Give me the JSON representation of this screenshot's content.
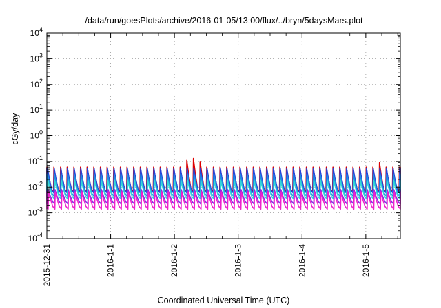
{
  "chart_data": {
    "type": "line",
    "title": "/data/run/goesPlots/archive/2016-01-05/13:00/flux/../bryn/5daysMars.plot",
    "xlabel": "Coordinated Universal Time (UTC)",
    "ylabel": "cGy/day",
    "yscale": "log",
    "ylim": [
      0.0001,
      10000
    ],
    "xlim": [
      "2015-12-31 00:00",
      "2016-01-05 13:00"
    ],
    "y_ticks": [
      {
        "base": "10",
        "exp": "-4"
      },
      {
        "base": "10",
        "exp": "-3"
      },
      {
        "base": "10",
        "exp": "-2"
      },
      {
        "base": "10",
        "exp": "-1"
      },
      {
        "base": "10",
        "exp": "0"
      },
      {
        "base": "10",
        "exp": "1"
      },
      {
        "base": "10",
        "exp": "2"
      },
      {
        "base": "10",
        "exp": "3"
      },
      {
        "base": "10",
        "exp": "4"
      }
    ],
    "x_tick_labels": [
      "2015-12-31",
      "2016-1-1",
      "2016-1-2",
      "2016-1-3",
      "2016-1-4",
      "2016-1-5"
    ],
    "grid": true,
    "cycle_hours": 2.5,
    "series": [
      {
        "color": "#dd0000",
        "peak": 0.06,
        "trough": 0.0065
      },
      {
        "color": "#2244dd",
        "peak": 0.055,
        "trough": 0.006
      },
      {
        "color": "#1f8fe0",
        "peak": 0.032,
        "trough": 0.0045
      },
      {
        "color": "#33d6d6",
        "peak": 0.018,
        "trough": 0.0035
      },
      {
        "color": "#8a2be2",
        "peak": 0.008,
        "trough": 0.0022
      },
      {
        "color": "#ee22cc",
        "peak": 0.0065,
        "trough": 0.0014
      }
    ],
    "red_bursts": [
      {
        "at": "2016-01-02 05:00",
        "peak": 0.11
      },
      {
        "at": "2016-01-02 07:30",
        "peak": 0.13
      },
      {
        "at": "2016-01-02 10:00",
        "peak": 0.1
      },
      {
        "at": "2016-01-05 06:00",
        "peak": 0.09
      }
    ]
  }
}
